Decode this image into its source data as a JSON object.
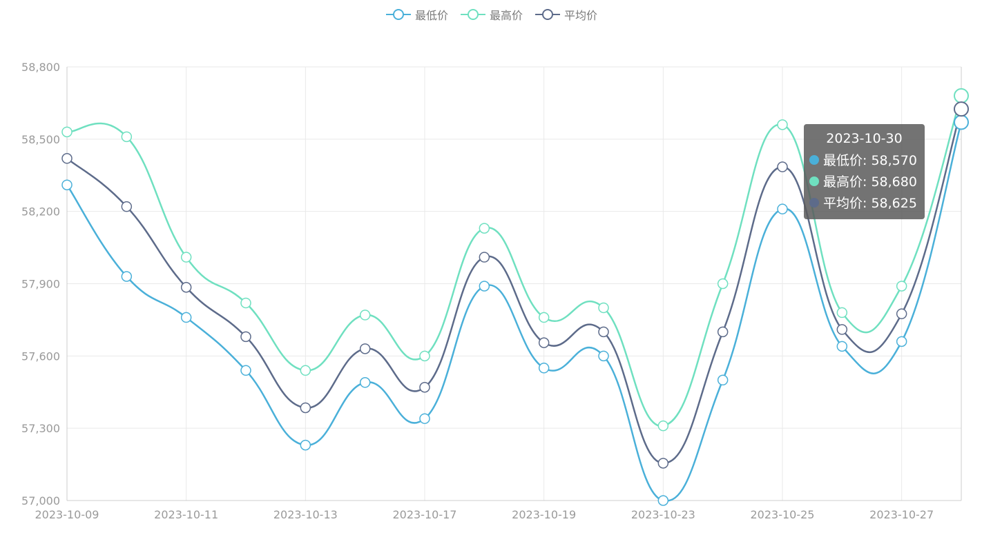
{
  "legend": {
    "items": [
      {
        "label": "最低价",
        "color": "#4ab0d9"
      },
      {
        "label": "最高价",
        "color": "#6fe0c0"
      },
      {
        "label": "平均价",
        "color": "#5d6b8a"
      }
    ]
  },
  "tooltip": {
    "title": "2023-10-30",
    "rows": [
      {
        "text": "最低价: 58,570",
        "color": "#4ab0d9"
      },
      {
        "text": "最高价: 58,680",
        "color": "#6fe0c0"
      },
      {
        "text": "平均价: 58,625",
        "color": "#5d6b8a"
      }
    ]
  },
  "chart_data": {
    "type": "line",
    "smooth": true,
    "grid": true,
    "legend_position": "top-center",
    "x": [
      "2023-10-09",
      "2023-10-10",
      "2023-10-11",
      "2023-10-12",
      "2023-10-13",
      "2023-10-16",
      "2023-10-17",
      "2023-10-18",
      "2023-10-19",
      "2023-10-20",
      "2023-10-23",
      "2023-10-24",
      "2023-10-25",
      "2023-10-26",
      "2023-10-27",
      "2023-10-30"
    ],
    "x_tick_labels": [
      "2023-10-09",
      "2023-10-11",
      "2023-10-13",
      "2023-10-17",
      "2023-10-19",
      "2023-10-23",
      "2023-10-25",
      "2023-10-27"
    ],
    "ylim": [
      57000,
      58800
    ],
    "y_ticks": [
      "57,000",
      "57,300",
      "57,600",
      "57,900",
      "58,200",
      "58,500",
      "58,800"
    ],
    "series": [
      {
        "name": "最低价",
        "color": "#4ab0d9",
        "values": [
          58310,
          57930,
          57760,
          57540,
          57230,
          57490,
          57340,
          57890,
          57550,
          57600,
          57000,
          57500,
          58210,
          57640,
          57660,
          58570
        ]
      },
      {
        "name": "最高价",
        "color": "#6fe0c0",
        "values": [
          58530,
          58510,
          58010,
          57820,
          57540,
          57770,
          57600,
          58130,
          57760,
          57800,
          57310,
          57900,
          58560,
          57780,
          57890,
          58680
        ]
      },
      {
        "name": "平均价",
        "color": "#5d6b8a",
        "values": [
          58420,
          58220,
          57885,
          57680,
          57385,
          57630,
          57470,
          58010,
          57655,
          57700,
          57155,
          57700,
          58385,
          57710,
          57775,
          58625
        ]
      }
    ],
    "highlight_index": 15
  }
}
